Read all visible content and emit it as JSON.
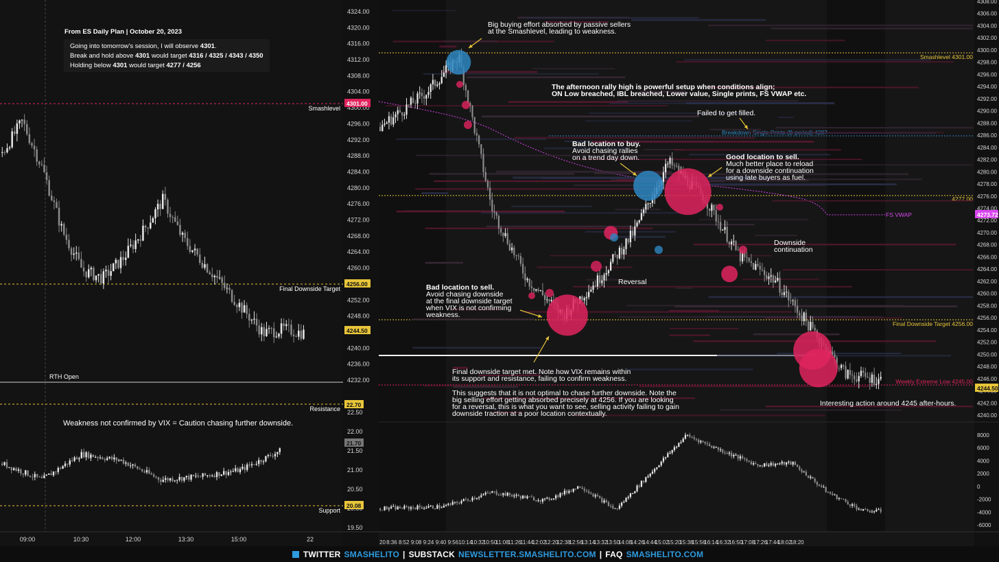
{
  "plan_box": {
    "header": "From ES Daily Plan | October 20, 2023",
    "lines": [
      {
        "pre": "Going into tomorrow's session, I will observe ",
        "bold": "4301",
        "post": "."
      },
      {
        "pre": "Break and hold above ",
        "bold": "4301",
        "post": " would target ",
        "bold2": "4316 / 4325 / 4343 / 4350"
      },
      {
        "pre": "Holding below ",
        "bold": "4301",
        "post": " would target ",
        "bold2": "4277 / 4256"
      }
    ]
  },
  "left_levels": {
    "smashlevel": "Smashlevel",
    "final_downside": "Final Downside Target",
    "rth_open": "RTH Open",
    "resistance": "Resistance",
    "support": "Support"
  },
  "vix_note": "Weakness not confirmed by VIX = Caution chasing further downside.",
  "price_axis_mid": [
    "4324.00",
    "4320.00",
    "4316.00",
    "4312.00",
    "4308.00",
    "4304.00",
    "4300.00",
    "4296.00",
    "4292.00",
    "4288.00",
    "4284.00",
    "4280.00",
    "4276.00",
    "4272.00",
    "4268.00",
    "4264.00",
    "4260.00",
    "4256.00",
    "4252.00",
    "4248.00",
    "4244.00",
    "4240.00",
    "4236.00",
    "4232.00"
  ],
  "price_tags_mid": {
    "smash": "4301.00",
    "final": "4256.00",
    "last": "4244.50"
  },
  "vix_axis": [
    "22.50",
    "22.00",
    "21.50",
    "21.00",
    "20.50",
    "20.00",
    "19.50"
  ],
  "vix_tags": {
    "res": "22.70",
    "last": "21.70",
    "sup": "20.08"
  },
  "price_axis_right": [
    "4308.00",
    "4306.00",
    "4304.00",
    "4302.00",
    "4300.00",
    "4298.00",
    "4296.00",
    "4294.00",
    "4292.00",
    "4290.00",
    "4288.00",
    "4286.00",
    "4284.00",
    "4282.00",
    "4280.00",
    "4278.00",
    "4276.00",
    "4274.00",
    "4272.00",
    "4270.00",
    "4268.00",
    "4266.00",
    "4264.00",
    "4262.00",
    "4260.00",
    "4258.00",
    "4256.00",
    "4254.00",
    "4252.00",
    "4250.00",
    "4248.00",
    "4246.00",
    "4244.00",
    "4242.00",
    "4240.00"
  ],
  "delta_axis": [
    "8000",
    "6000",
    "4000",
    "2000",
    "0",
    "-2000",
    "-4000",
    "-6000"
  ],
  "right_tags": {
    "fsvwap": "4273.72",
    "last": "4244.50"
  },
  "right_levels": {
    "smash": "Smashlevel  4301.00",
    "breakdown": "Breakdown Single Prints (B-period) 4287",
    "l4277": "4277.00",
    "fsvwap": "FS VWAP",
    "final": "Final Downside Target  4256.00",
    "weekly": "Weekly Extreme Low  4245.00"
  },
  "x_left": [
    "09:00",
    "10:30",
    "12:00",
    "13:30",
    "15:00",
    "22"
  ],
  "x_right": [
    "20",
    "8:36",
    "8:52",
    "9:08",
    "9:24",
    "9:40",
    "9:56",
    "10:14",
    "10:32",
    "10:50",
    "11:08",
    "11:26",
    "11:44",
    "12:02",
    "12:20",
    "12:38",
    "12:56",
    "13:14",
    "13:32",
    "13:50",
    "14:08",
    "14:26",
    "14:44",
    "15:02",
    "15:20",
    "15:38",
    "15:56",
    "16:14",
    "16:32",
    "16:50",
    "17:08",
    "17:26",
    "17:44",
    "18:02",
    "18:20"
  ],
  "annotations": [
    {
      "lines": [
        "Big buying effort absorbed by passive sellers",
        "at the Smashlevel, leading to weakness."
      ],
      "bold": false
    },
    {
      "lines": [
        "The afternoon rally high is powerful setup when conditions align;",
        "ON Low breached, IBL breached, Lower value, Single prints, FS VWAP etc."
      ],
      "bold": true
    },
    {
      "lines": [
        "Failed to get filled."
      ],
      "bold": false
    },
    {
      "lines": [
        "Bad location to buy.",
        "Avoid chasing rallies",
        "on a trend day down."
      ],
      "bold": "first"
    },
    {
      "lines": [
        "Good location to sell.",
        "Much better place to reload",
        "for a downside continuation",
        "using late buyers as fuel."
      ],
      "bold": "first"
    },
    {
      "lines": [
        "Downside",
        "continuation"
      ],
      "bold": false
    },
    {
      "lines": [
        "Reversal"
      ],
      "bold": false
    },
    {
      "lines": [
        "Bad location to sell.",
        "Avoid chasing downside",
        "at the final downside target",
        "when VIX is not confirming",
        "weakness."
      ],
      "bold": "first"
    },
    {
      "lines": [
        "Final downside target met. Note how VIX remains within",
        "its support and resistance, failing to confirm weakness."
      ],
      "bold": false
    },
    {
      "lines": [
        "This suggests that it is not optimal to chase further downside. Note the",
        "big selling effort getting absorbed precisely at 4256. If you are looking",
        "for a reversal, this is what you want to see, selling activity failing to gain",
        "downside traction at a poor location contextually."
      ],
      "bold": false
    },
    {
      "lines": [
        "Interesting action around 4245 after-hours."
      ],
      "bold": false
    }
  ],
  "footer": {
    "twitter": "TWITTER",
    "twitter_handle": "SMASHELITO",
    "substack": "SUBSTACK",
    "substack_url": "NEWSLETTER.SMASHELITO.COM",
    "faq": "FAQ",
    "faq_url": "SMASHELITO.COM"
  },
  "colors": {
    "bg": "#131313",
    "up": "#e8e8e8",
    "down": "#8a8a8a",
    "red": "#e0245e",
    "blue": "#2e86c1",
    "yellow": "#e8c53a",
    "pink": "#d946ef",
    "axis_bg": "#111111"
  },
  "chart_data": [
    {
      "type": "line",
      "name": "ES price (daily view)",
      "x": [
        "09:00",
        "09:30",
        "10:00",
        "10:30",
        "11:00",
        "11:30",
        "12:00",
        "12:30",
        "13:00",
        "13:30",
        "14:00",
        "14:30",
        "15:00",
        "15:30",
        "16:00",
        "16:30"
      ],
      "y": [
        4290,
        4298,
        4286,
        4270,
        4260,
        4258,
        4263,
        4270,
        4278,
        4268,
        4262,
        4256,
        4250,
        4244,
        4245,
        4244
      ],
      "ylim": [
        4232,
        4326
      ]
    },
    {
      "type": "line",
      "name": "VIX",
      "x": [
        "09:00",
        "10:00",
        "11:00",
        "12:00",
        "13:00",
        "14:00",
        "15:00",
        "16:00"
      ],
      "y": [
        21.3,
        20.8,
        21.6,
        21.4,
        20.8,
        20.9,
        21.1,
        21.7
      ],
      "ylim": [
        19.3,
        22.9
      ],
      "levels": {
        "resistance": 22.7,
        "support": 20.08
      }
    },
    {
      "type": "line",
      "name": "ES price (intraday)",
      "x": [
        "08:20",
        "09:08",
        "09:40",
        "10:14",
        "10:50",
        "11:26",
        "12:02",
        "12:38",
        "13:14",
        "13:50",
        "14:26",
        "15:02",
        "15:38",
        "16:14",
        "16:50"
      ],
      "y": [
        4288,
        4294,
        4300,
        4274,
        4262,
        4256,
        4262,
        4270,
        4282,
        4276,
        4266,
        4262,
        4254,
        4246,
        4245
      ],
      "ylim": [
        4239,
        4309
      ]
    },
    {
      "type": "scatter",
      "name": "Volume bubbles",
      "points": [
        {
          "x": "9:40",
          "y": 4299,
          "size": 18,
          "side": "buy"
        },
        {
          "x": "12:52",
          "y": 4278,
          "size": 22,
          "side": "buy"
        },
        {
          "x": "13:32",
          "y": 4277,
          "size": 34,
          "side": "sell"
        },
        {
          "x": "11:30",
          "y": 4256,
          "size": 30,
          "side": "sell"
        },
        {
          "x": "15:38",
          "y": 4250,
          "size": 28,
          "side": "sell"
        },
        {
          "x": "15:44",
          "y": 4247,
          "size": 28,
          "side": "sell"
        },
        {
          "x": "12:14",
          "y": 4270,
          "size": 10,
          "side": "sell"
        },
        {
          "x": "14:14",
          "y": 4263,
          "size": 12,
          "side": "sell"
        }
      ]
    },
    {
      "type": "line",
      "name": "Cumulative delta",
      "x": [
        "08:20",
        "09:24",
        "10:14",
        "11:08",
        "11:44",
        "12:20",
        "12:56",
        "13:32",
        "14:08",
        "14:44",
        "15:20",
        "15:56",
        "16:32",
        "16:50"
      ],
      "y": [
        -3800,
        -3500,
        -1200,
        -2500,
        -200,
        -4000,
        2000,
        8000,
        5500,
        3200,
        3500,
        -1200,
        -4200,
        -4200
      ],
      "ylim": [
        -7000,
        9000
      ]
    }
  ]
}
